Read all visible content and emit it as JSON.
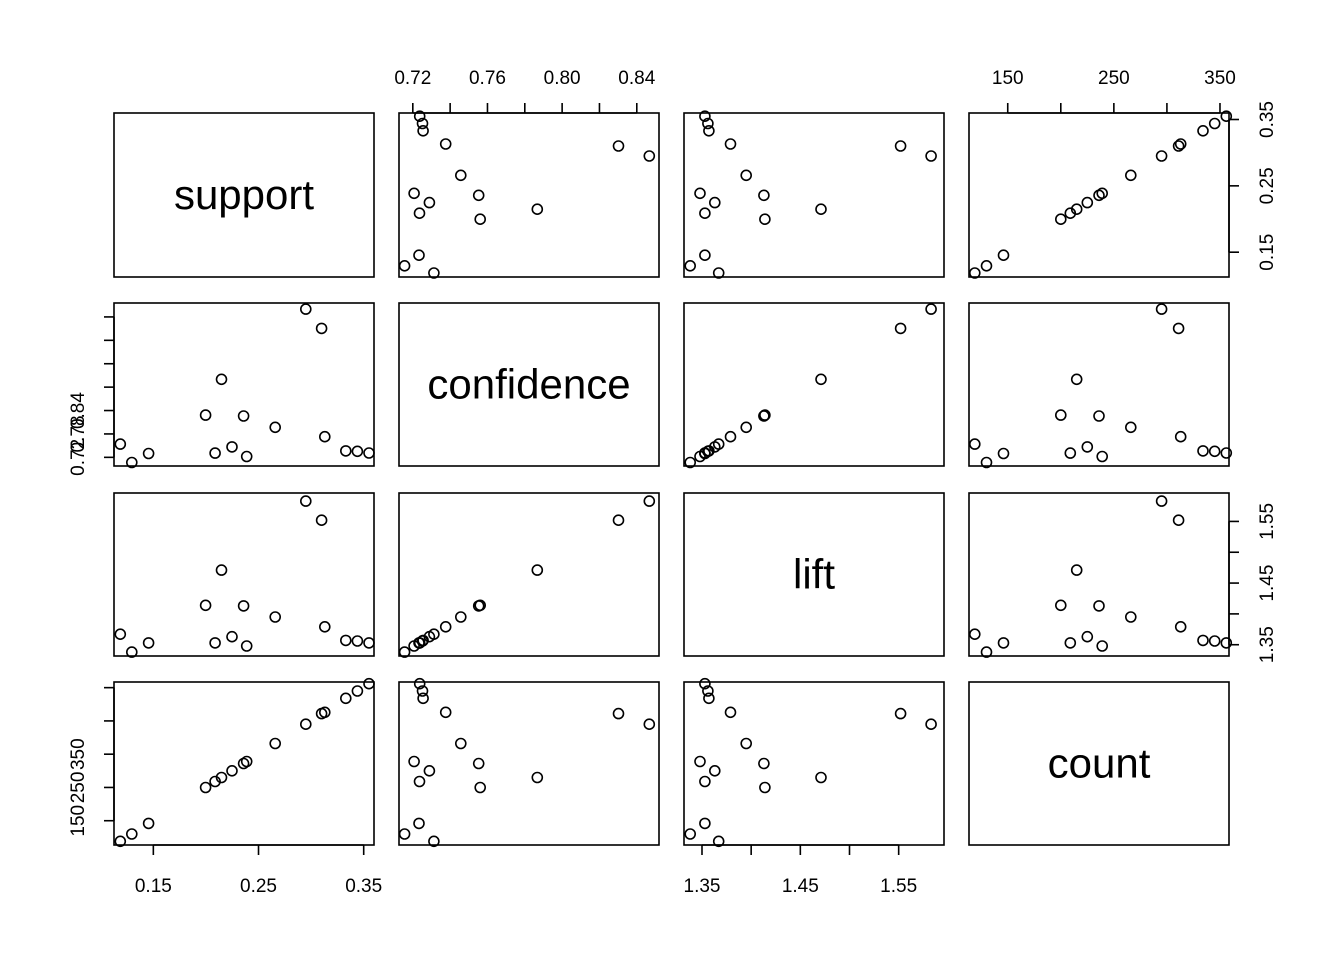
{
  "chart_data": {
    "type": "scatter",
    "subtype": "pairs-matrix",
    "title": "",
    "variables": [
      "support",
      "confidence",
      "lift",
      "count"
    ],
    "point_style": "open-circle",
    "grid": false,
    "axes": {
      "support": {
        "ticks": [
          0.15,
          0.25,
          0.35
        ],
        "tick_labels": [
          "0.15",
          "0.25",
          "0.35"
        ],
        "range": [
          0.1126,
          0.3598
        ]
      },
      "confidence": {
        "ticks": [
          0.72,
          0.74,
          0.76,
          0.78,
          0.8,
          0.82,
          0.84
        ],
        "tick_labels_top": [
          "0.72",
          "",
          "0.76",
          "",
          "0.80",
          "",
          "0.84"
        ],
        "tick_labels_left": [
          "0.72",
          "0.78",
          "0.84"
        ],
        "range": [
          0.7126,
          0.8519
        ]
      },
      "lift": {
        "ticks": [
          1.35,
          1.4,
          1.45,
          1.5,
          1.55
        ],
        "tick_labels_bottom": [
          "1.35",
          "",
          "1.45",
          "",
          "1.55"
        ],
        "tick_labels_right": [
          "1.35",
          "",
          "1.45",
          "",
          "1.55"
        ],
        "range": [
          1.3317,
          1.5961
        ]
      },
      "count": {
        "ticks": [
          150,
          200,
          250,
          300,
          350
        ],
        "tick_labels_top": [
          "150",
          "",
          "250",
          "",
          "350"
        ],
        "tick_labels_left": [
          "150",
          "250",
          "350"
        ],
        "range": [
          113.5,
          358.5
        ]
      }
    },
    "records": [
      {
        "support": 0.1186,
        "confidence": 0.7313,
        "lift": 1.367,
        "count": 119
      },
      {
        "support": 0.1295,
        "confidence": 0.7156,
        "lift": 1.338,
        "count": 130
      },
      {
        "support": 0.1455,
        "confidence": 0.7233,
        "lift": 1.353,
        "count": 146
      },
      {
        "support": 0.1997,
        "confidence": 0.7561,
        "lift": 1.414,
        "count": 200
      },
      {
        "support": 0.2087,
        "confidence": 0.7236,
        "lift": 1.353,
        "count": 209
      },
      {
        "support": 0.2148,
        "confidence": 0.7867,
        "lift": 1.471,
        "count": 215
      },
      {
        "support": 0.2248,
        "confidence": 0.7289,
        "lift": 1.363,
        "count": 225
      },
      {
        "support": 0.2358,
        "confidence": 0.7553,
        "lift": 1.413,
        "count": 236
      },
      {
        "support": 0.2388,
        "confidence": 0.7207,
        "lift": 1.348,
        "count": 239
      },
      {
        "support": 0.2659,
        "confidence": 0.7457,
        "lift": 1.395,
        "count": 266
      },
      {
        "support": 0.295,
        "confidence": 0.8467,
        "lift": 1.583,
        "count": 295
      },
      {
        "support": 0.31,
        "confidence": 0.8302,
        "lift": 1.552,
        "count": 311
      },
      {
        "support": 0.313,
        "confidence": 0.7376,
        "lift": 1.379,
        "count": 313
      },
      {
        "support": 0.333,
        "confidence": 0.7255,
        "lift": 1.357,
        "count": 334
      },
      {
        "support": 0.344,
        "confidence": 0.7252,
        "lift": 1.356,
        "count": 345
      },
      {
        "support": 0.355,
        "confidence": 0.7237,
        "lift": 1.353,
        "count": 356
      }
    ]
  }
}
